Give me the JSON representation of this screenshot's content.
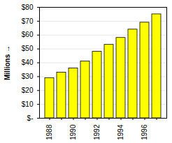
{
  "chart_data": {
    "type": "bar",
    "categories": [
      "1988",
      null,
      "1990",
      null,
      "1992",
      null,
      "1994",
      null,
      "1996",
      null
    ],
    "values": [
      29,
      33,
      36,
      41,
      48,
      53,
      58,
      64,
      69,
      75
    ],
    "color": "#ffff00",
    "ylabel": "Millions",
    "ylim": [
      0,
      80
    ],
    "yticks": [
      {
        "value": 0,
        "label": "$-"
      },
      {
        "value": 10,
        "label": "$10"
      },
      {
        "value": 20,
        "label": "$20"
      },
      {
        "value": 30,
        "label": "$30"
      },
      {
        "value": 40,
        "label": "$40"
      },
      {
        "value": 50,
        "label": "$50"
      },
      {
        "value": 60,
        "label": "$60"
      },
      {
        "value": 70,
        "label": "$70"
      },
      {
        "value": 80,
        "label": "$80"
      }
    ],
    "grid": true
  }
}
